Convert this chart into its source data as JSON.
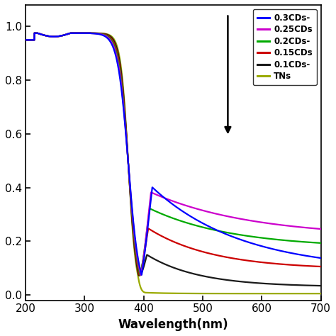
{
  "xlabel": "Wavelength(nm)",
  "xlim": [
    200,
    700
  ],
  "ylim": [
    -0.02,
    1.08
  ],
  "yticks": [
    0.0,
    0.2,
    0.4,
    0.6,
    0.8,
    1.0
  ],
  "xticks": [
    200,
    300,
    400,
    500,
    600,
    700
  ],
  "series_order": [
    "TNs",
    "0.1CDs",
    "0.15CDs",
    "0.2CDs",
    "0.25CDs",
    "0.3CDs"
  ],
  "series_params": {
    "TNs": {
      "color": "#9aaa00",
      "knee": 374,
      "val_at_knee": 0.5,
      "val_at_700": 0.007
    },
    "0.1CDs": {
      "color": "#1a1a1a",
      "knee": 374,
      "val_at_knee": 0.5,
      "val_at_700": 0.03
    },
    "0.15CDs": {
      "color": "#cc0000",
      "knee": 374,
      "val_at_knee": 0.5,
      "val_at_700": 0.095
    },
    "0.2CDs": {
      "color": "#00aa00",
      "knee": 374,
      "val_at_knee": 0.5,
      "val_at_700": 0.165
    },
    "0.25CDs": {
      "color": "#cc00cc",
      "knee": 374,
      "val_at_knee": 0.5,
      "val_at_700": 0.21
    },
    "0.3CDs": {
      "color": "#0000ff",
      "knee": 374,
      "val_at_knee": 0.5,
      "val_at_700": 0.095
    }
  },
  "legend_labels": [
    "0.3CDs-",
    "0.25CDs",
    "0.2CDs-",
    "0.15CDs",
    "0.1CDs-",
    "TNs"
  ],
  "legend_colors": [
    "#0000ff",
    "#cc00cc",
    "#00aa00",
    "#cc0000",
    "#1a1a1a",
    "#9aaa00"
  ],
  "figsize": [
    4.74,
    4.74
  ],
  "dpi": 100
}
